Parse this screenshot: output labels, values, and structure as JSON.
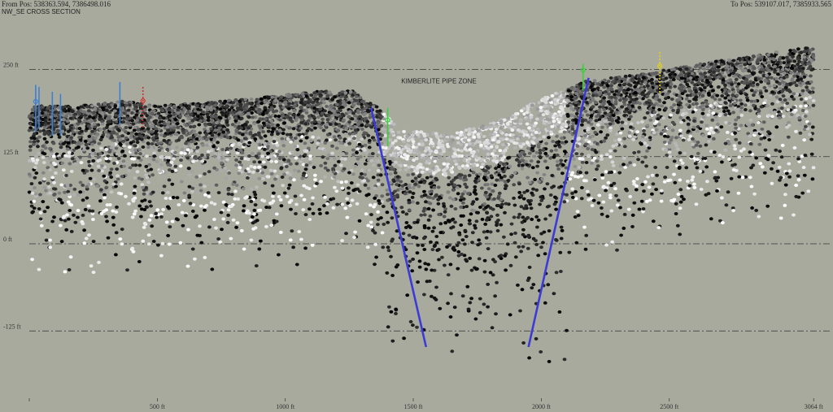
{
  "header": {
    "from_pos": "From Pos: 538363.594, 7386498.016",
    "section_title": "NW_SE CROSS SECTION",
    "to_pos": "To Pos: 539107.017, 7385933.565"
  },
  "colors": {
    "background": "#a9aa9e",
    "pipe_boundary": "#3b3bd6",
    "gridline": "#333333"
  },
  "chart_data": {
    "type": "scatter",
    "title": "",
    "xlim": [
      0,
      3064
    ],
    "ylim": [
      -175,
      300
    ],
    "x_ticks": [
      {
        "value": 0,
        "label": ""
      },
      {
        "value": 500,
        "label": "500 ft"
      },
      {
        "value": 1000,
        "label": "1000 ft"
      },
      {
        "value": 1500,
        "label": "1500 ft"
      },
      {
        "value": 2000,
        "label": "2000 ft"
      },
      {
        "value": 2500,
        "label": "2500 ft"
      },
      {
        "value": 3064,
        "label": "3064 ft"
      }
    ],
    "y_gridlines": [
      {
        "value": 250,
        "label": "250 ft"
      },
      {
        "value": 125,
        "label": "125 ft"
      },
      {
        "value": 0,
        "label": "0 ft"
      },
      {
        "value": -125,
        "label": "-125 ft"
      }
    ],
    "surface_profile": [
      [
        0,
        198
      ],
      [
        200,
        198
      ],
      [
        356,
        205
      ],
      [
        512,
        198
      ],
      [
        825,
        207
      ],
      [
        1137,
        219
      ],
      [
        1262,
        219
      ],
      [
        1356,
        198
      ],
      [
        1450,
        163
      ],
      [
        1637,
        157
      ],
      [
        1825,
        175
      ],
      [
        2012,
        210
      ],
      [
        2169,
        233
      ],
      [
        2387,
        243
      ],
      [
        2700,
        263
      ],
      [
        3012,
        280
      ],
      [
        3064,
        282
      ]
    ],
    "pipe_boundaries": [
      {
        "from": [
          1335,
          195
        ],
        "to": [
          1550,
          -148
        ]
      },
      {
        "from": [
          1950,
          -148
        ],
        "to": [
          2185,
          238
        ]
      }
    ],
    "annotations": [
      {
        "text": "KIMBERLITE PIPE ZONE",
        "x": 1600,
        "y": 230
      }
    ],
    "boreholes": [
      {
        "x": 25,
        "top": 228,
        "bottom": 160,
        "color": "#3f7fd0",
        "style": "solid",
        "marker": "#3f7fd0"
      },
      {
        "x": 38,
        "top": 225,
        "bottom": 165,
        "color": "#3f7fd0",
        "style": "solid"
      },
      {
        "x": 90,
        "top": 218,
        "bottom": 155,
        "color": "#3f7fd0",
        "style": "solid"
      },
      {
        "x": 122,
        "top": 215,
        "bottom": 155,
        "color": "#3f7fd0",
        "style": "solid"
      },
      {
        "x": 354,
        "top": 232,
        "bottom": 170,
        "color": "#3f7fd0",
        "style": "solid"
      },
      {
        "x": 444,
        "top": 225,
        "bottom": 165,
        "color": "#d03030",
        "style": "dotted",
        "marker": "#d03030"
      },
      {
        "x": 1400,
        "top": 195,
        "bottom": 140,
        "color": "#3ccf3c",
        "style": "solid",
        "marker": "#3ccf3c"
      },
      {
        "x": 2163,
        "top": 258,
        "bottom": 220,
        "color": "#3ccf3c",
        "style": "solid",
        "marker": "#3ccf3c"
      },
      {
        "x": 2463,
        "top": 275,
        "bottom": 215,
        "color": "#e0d020",
        "style": "dotted",
        "marker": "#e0d020"
      }
    ]
  }
}
